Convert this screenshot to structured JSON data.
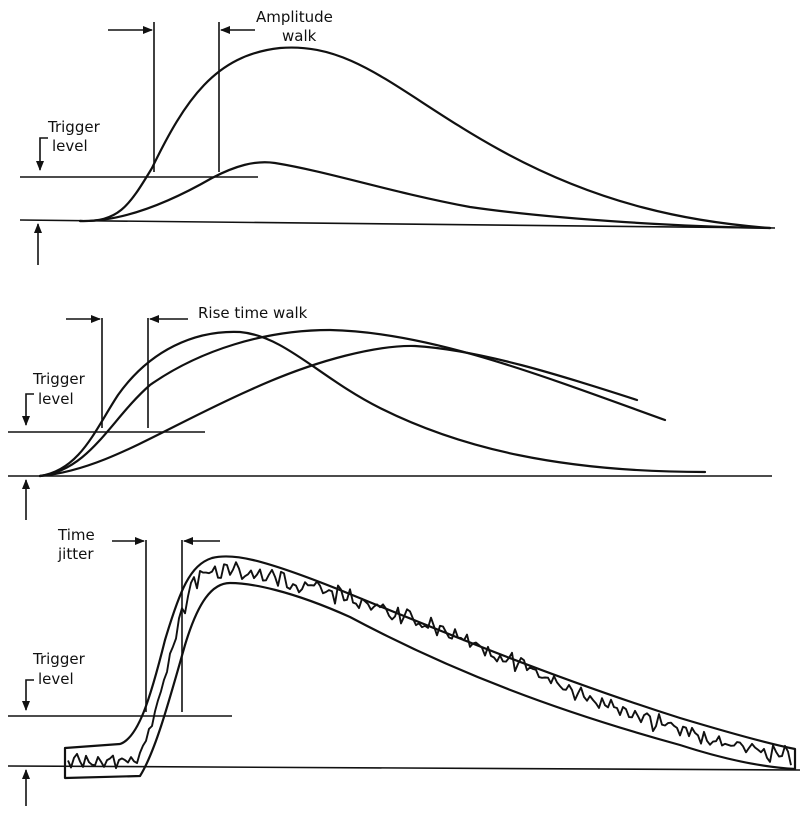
{
  "panels": {
    "amplitude_walk": {
      "label_line1": "Amplitude",
      "label_line2": "walk",
      "trigger_line1": "Trigger",
      "trigger_line2": "level"
    },
    "rise_time_walk": {
      "label": "Rise time walk",
      "trigger_line1": "Trigger",
      "trigger_line2": "level"
    },
    "time_jitter": {
      "label_line1": "Time",
      "label_line2": "jitter",
      "trigger_line1": "Trigger",
      "trigger_line2": "level"
    }
  }
}
